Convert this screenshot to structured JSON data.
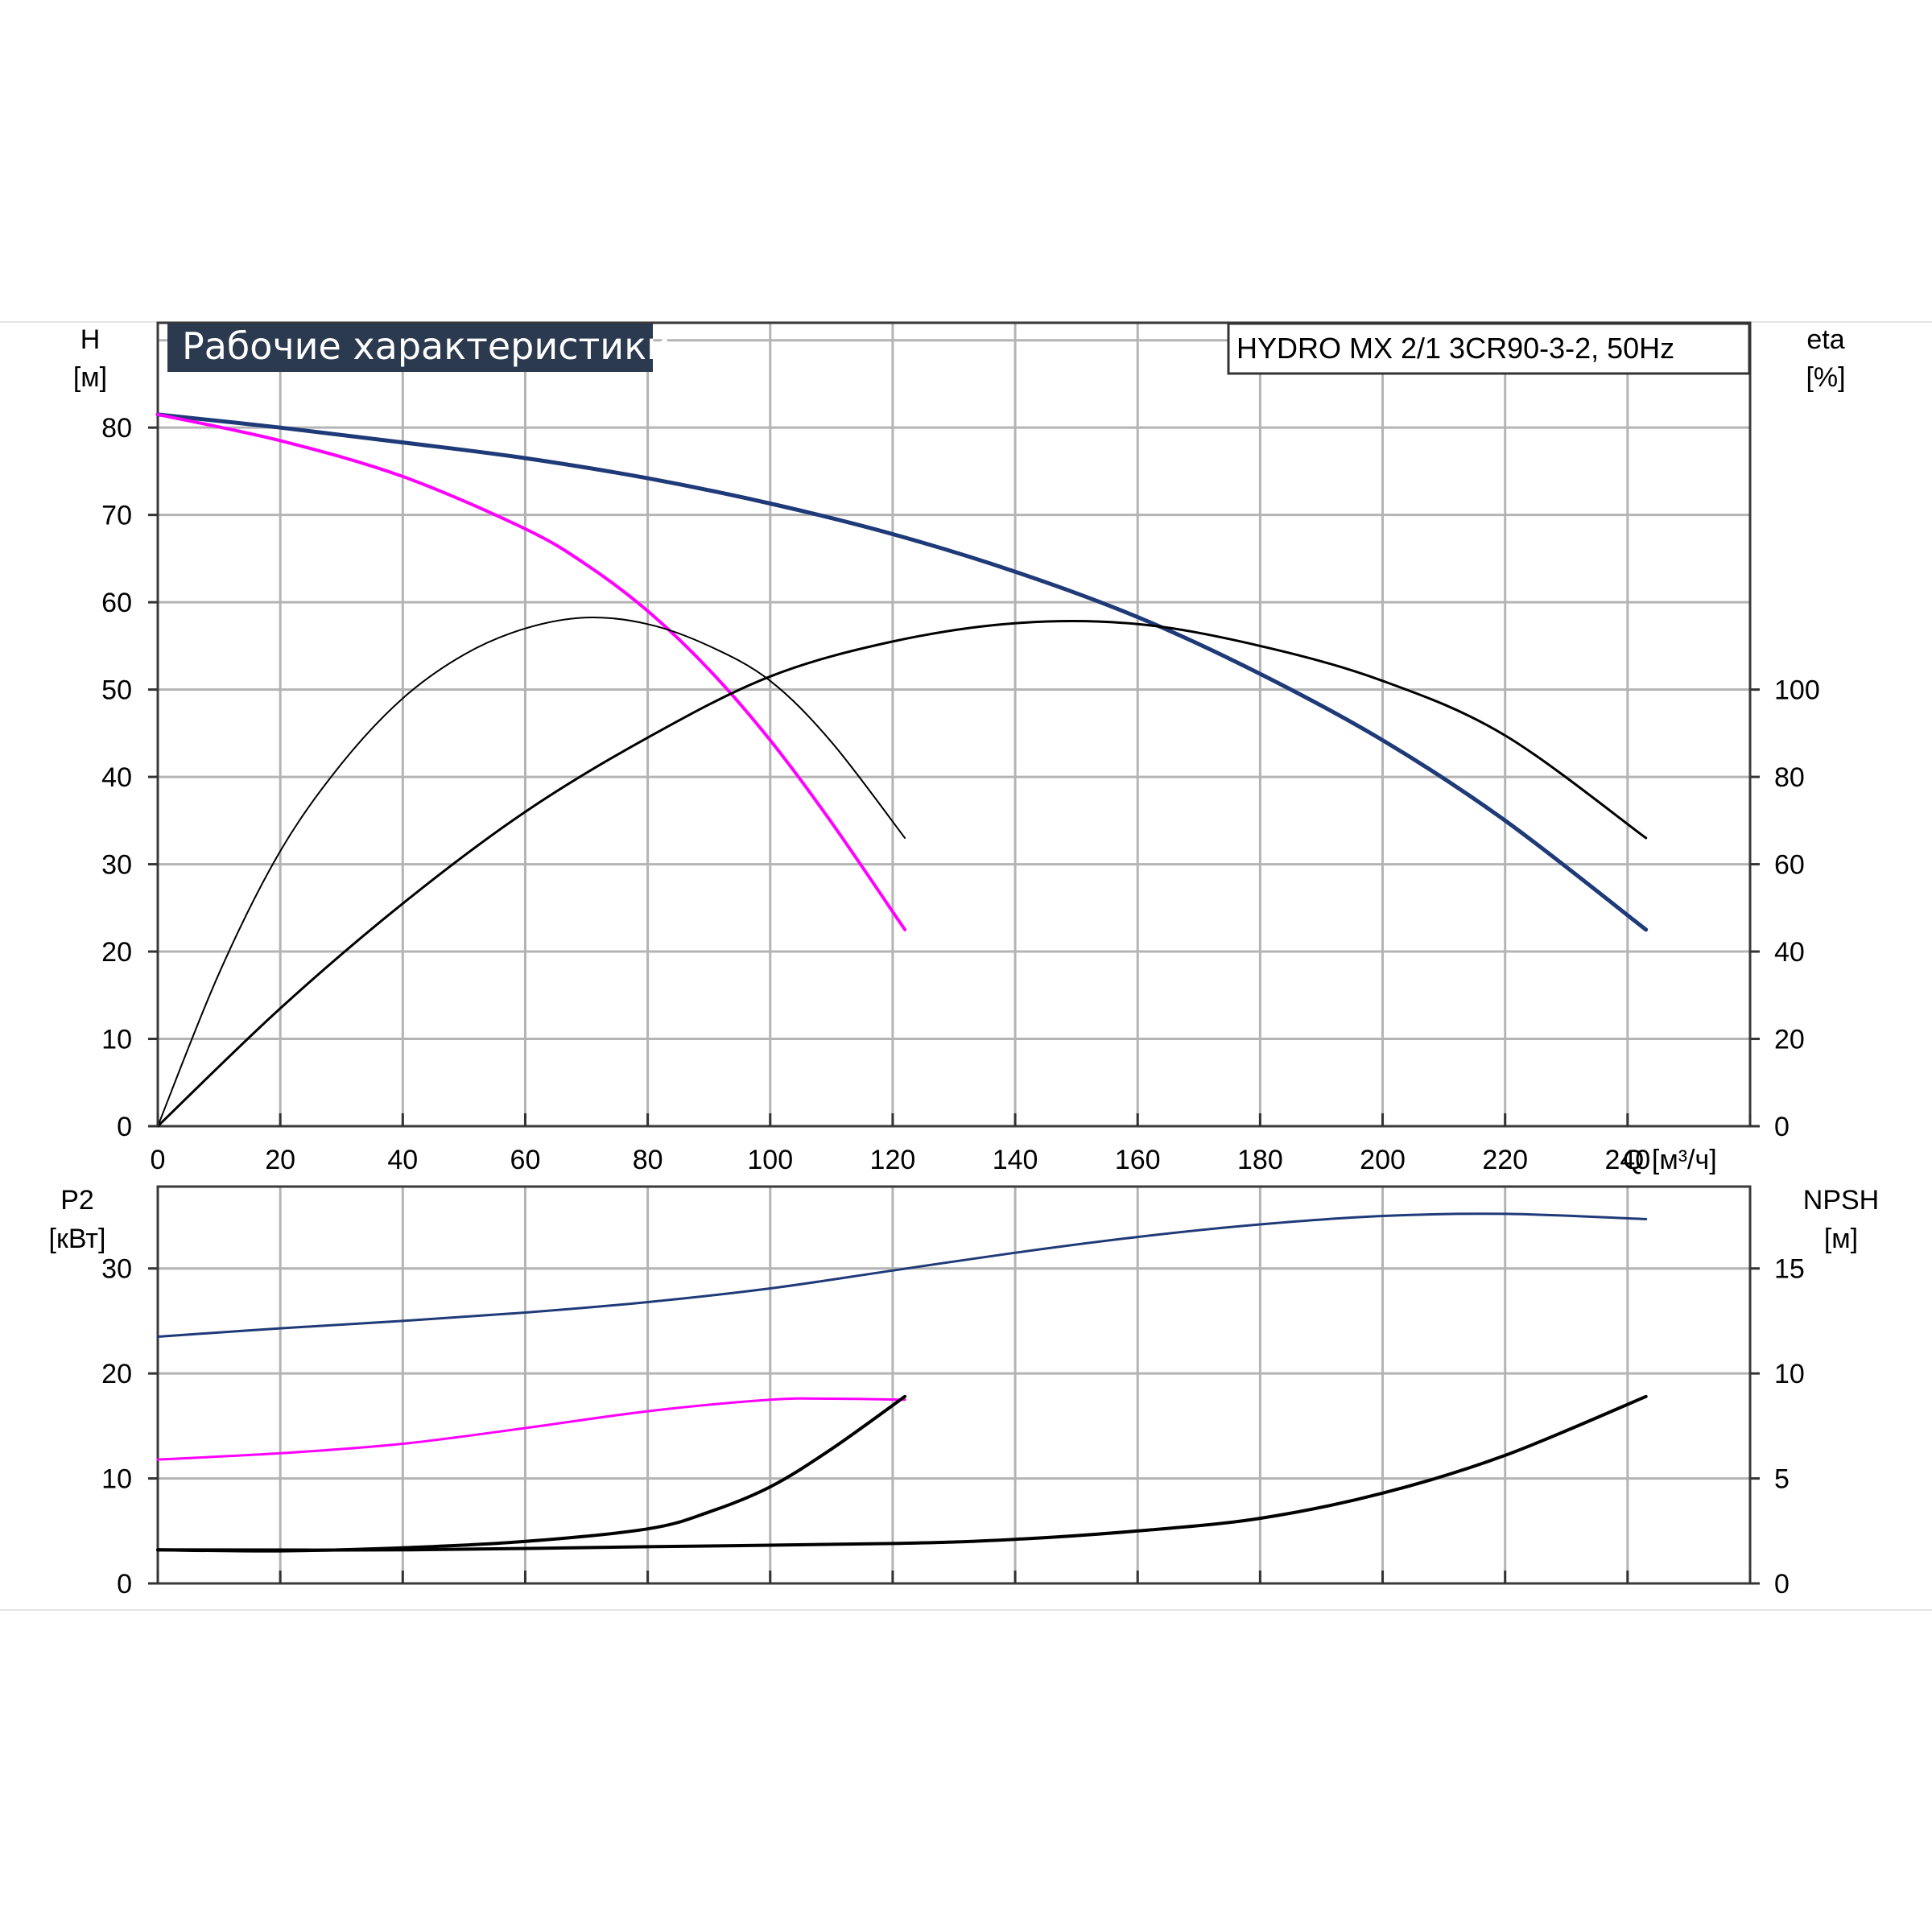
{
  "chart_data": [
    {
      "type": "line",
      "title": "Рабочие характеристики",
      "model_label": "HYDRO MX 2/1 3CR90-3-2, 50Hz",
      "xlabel": "Q [м³/ч]",
      "ylabel_left": [
        "H",
        "[м]"
      ],
      "ylabel_right": [
        "eta",
        "[%]"
      ],
      "xlim": [
        0,
        260
      ],
      "ylim_left": [
        0,
        92
      ],
      "ylim_right": [
        0,
        184
      ],
      "x_ticks": [
        "0",
        "20",
        "40",
        "60",
        "80",
        "100",
        "120",
        "140",
        "160",
        "180",
        "200",
        "220",
        "240"
      ],
      "y_ticks_left": [
        "0",
        "10",
        "20",
        "30",
        "40",
        "50",
        "60",
        "70",
        "80"
      ],
      "y_ticks_right": [
        "0",
        "20",
        "40",
        "60",
        "80",
        "100"
      ],
      "grid": true,
      "series": [
        {
          "axis": "left",
          "color": "#1f3a78",
          "x": [
            0,
            20,
            40,
            60,
            80,
            100,
            120,
            140,
            160,
            180,
            200,
            220,
            243
          ],
          "y": [
            81.5,
            80,
            78.3,
            76.5,
            74.2,
            71.3,
            67.8,
            63.5,
            58.3,
            51.8,
            44.2,
            35,
            22.5
          ]
        },
        {
          "axis": "left",
          "color": "#ff00ff",
          "x": [
            0,
            20,
            40,
            60,
            70,
            80,
            90,
            100,
            110,
            122
          ],
          "y": [
            81.5,
            78.5,
            74.4,
            68.4,
            64.3,
            59,
            52.3,
            44.2,
            34.8,
            22.5
          ]
        },
        {
          "axis": "right",
          "color": "#000000",
          "x": [
            0,
            10,
            20,
            30,
            40,
            50,
            60,
            70,
            80,
            90,
            100,
            110,
            122
          ],
          "y": [
            0,
            35,
            63,
            83,
            98,
            108,
            114,
            116.5,
            115,
            110,
            102,
            88,
            66
          ]
        },
        {
          "axis": "right",
          "color": "#000000",
          "x": [
            0,
            20,
            40,
            60,
            80,
            100,
            120,
            140,
            160,
            180,
            200,
            220,
            243
          ],
          "y": [
            0,
            27,
            51,
            72,
            89,
            103,
            111,
            115.2,
            115,
            110,
            102,
            89.5,
            66
          ]
        }
      ]
    },
    {
      "type": "line",
      "xlim": [
        0,
        260
      ],
      "ylabel_left": [
        "P2",
        "[кВт]"
      ],
      "ylabel_right": [
        "NPSH",
        "[м]"
      ],
      "ylim_left": [
        0,
        37.8
      ],
      "ylim_right": [
        0,
        18.9
      ],
      "y_ticks_left": [
        "0",
        "10",
        "20",
        "30"
      ],
      "y_ticks_right": [
        "0",
        "5",
        "10",
        "15"
      ],
      "grid": true,
      "series": [
        {
          "axis": "left",
          "color": "#1f3a78",
          "x": [
            0,
            20,
            40,
            60,
            80,
            100,
            120,
            140,
            160,
            180,
            200,
            220,
            243
          ],
          "y": [
            23.5,
            24.3,
            25,
            25.8,
            26.8,
            28.1,
            29.8,
            31.5,
            33,
            34.2,
            35,
            35.2,
            34.7
          ]
        },
        {
          "axis": "left",
          "color": "#ff00ff",
          "x": [
            0,
            20,
            40,
            60,
            80,
            100,
            110,
            122
          ],
          "y": [
            11.8,
            12.4,
            13.3,
            14.8,
            16.4,
            17.5,
            17.6,
            17.5
          ]
        },
        {
          "axis": "right",
          "color": "#000000",
          "x": [
            0,
            20,
            40,
            60,
            80,
            90,
            100,
            110,
            122
          ],
          "y": [
            1.6,
            1.55,
            1.7,
            2,
            2.6,
            3.4,
            4.6,
            6.4,
            8.9
          ]
        },
        {
          "axis": "right",
          "color": "#000000",
          "x": [
            0,
            40,
            80,
            120,
            140,
            160,
            180,
            200,
            220,
            243
          ],
          "y": [
            1.6,
            1.6,
            1.75,
            1.9,
            2.1,
            2.5,
            3.1,
            4.3,
            6.1,
            8.9
          ]
        }
      ]
    }
  ]
}
